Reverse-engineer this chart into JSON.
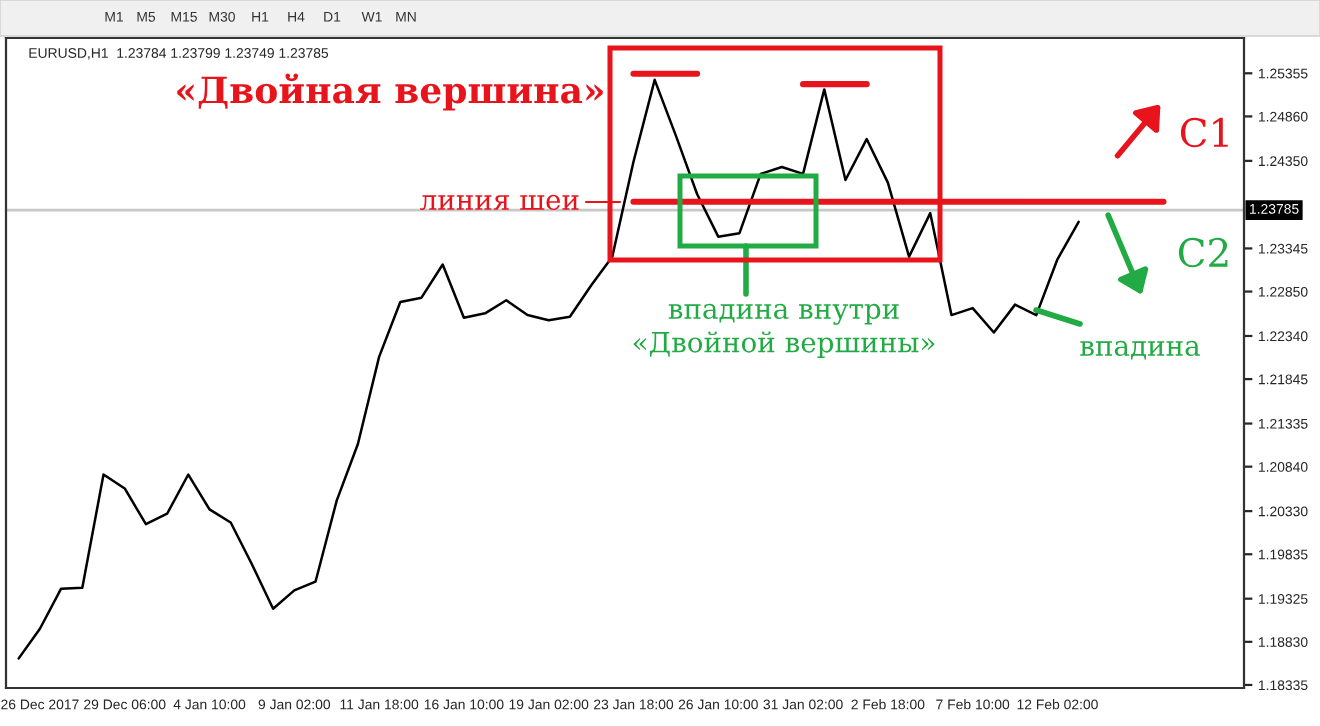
{
  "chart_data": {
    "type": "line",
    "title": "EURUSD,H1  1.23784 1.23799 1.23749 1.23785",
    "annotations": [
      "«Двойная вершина»",
      "линия шеи",
      "впадина внутри\n«Двойной вершины»",
      "C1",
      "C2",
      "впадина",
      "M1",
      "M5",
      "M15",
      "M30",
      "H1",
      "H4",
      "D1",
      "W1",
      "MN"
    ],
    "categories": [
      null,
      null,
      "26 Dec 2017",
      null,
      null,
      null,
      "29 Dec 06:00",
      null,
      null,
      null,
      "4 Jan 10:00",
      null,
      null,
      null,
      "9 Jan 02:00",
      null,
      null,
      null,
      "11 Jan 18:00",
      null,
      null,
      null,
      "16 Jan 10:00",
      null,
      null,
      null,
      "19 Jan 02:00",
      null,
      null,
      null,
      "23 Jan 18:00",
      null,
      null,
      null,
      "26 Jan 10:00",
      null,
      null,
      null,
      "31 Jan 02:00",
      null,
      null,
      null,
      "2 Feb 18:00",
      null,
      null,
      null,
      "7 Feb 10:00",
      null,
      null,
      null,
      "12 Feb 02:00",
      null,
      null,
      null,
      null,
      null,
      null,
      null,
      null
    ],
    "ylim": [
      1.183,
      1.2576
    ],
    "yticks": [
      {
        "value": 1.25355,
        "label": "1.25355"
      },
      {
        "value": 1.2486,
        "label": "1.24860"
      },
      {
        "value": 1.2435,
        "label": "1.24350"
      },
      {
        "value": 1.23345,
        "label": "1.23345"
      },
      {
        "value": 1.2285,
        "label": "1.22850"
      },
      {
        "value": 1.2234,
        "label": "1.22340"
      },
      {
        "value": 1.21845,
        "label": "1.21845"
      },
      {
        "value": 1.21335,
        "label": "1.21335"
      },
      {
        "value": 1.2084,
        "label": "1.20840"
      },
      {
        "value": 1.2033,
        "label": "1.20330"
      },
      {
        "value": 1.19835,
        "label": "1.19835"
      },
      {
        "value": 1.19325,
        "label": "1.19325"
      },
      {
        "value": 1.1883,
        "label": "1.18830"
      },
      {
        "value": 1.18335,
        "label": "1.18335"
      }
    ],
    "ref_lines": [
      {
        "axis": "y",
        "value": 1.23785,
        "label": "1.23785",
        "color": "#c8c8c8"
      }
    ],
    "grid": false,
    "legend": false,
    "marker": "none",
    "line_style": "solid",
    "series": [
      {
        "color": "#000000",
        "values": [
          null,
          1.1864,
          1.1898,
          1.1944,
          1.1945,
          1.2075,
          1.2059,
          1.2018,
          1.203,
          1.2075,
          1.2035,
          1.202,
          1.1972,
          1.1921,
          1.1942,
          1.1952,
          1.2045,
          1.211,
          1.221,
          1.2273,
          1.2278,
          1.2316,
          1.2255,
          1.226,
          1.2275,
          1.2258,
          1.2252,
          1.2256,
          1.2292,
          1.2325,
          1.2434,
          1.2528,
          1.2464,
          1.2397,
          1.2348,
          1.2352,
          1.242,
          1.2428,
          1.242,
          1.2517,
          1.2413,
          1.246,
          1.241,
          1.2325,
          1.2375,
          1.2258,
          1.2266,
          1.2238,
          1.227,
          1.2258,
          1.2322,
          1.2365,
          null,
          null,
          null,
          null,
          null,
          null,
          null
        ]
      },
      {
        "color": "#e8141c",
        "values": [
          null,
          null,
          null,
          null,
          null,
          null,
          null,
          null,
          null,
          null,
          null,
          null,
          null,
          null,
          null,
          null,
          null,
          null,
          null,
          null,
          null,
          null,
          null,
          null,
          null,
          null,
          null,
          null,
          null,
          null,
          1.2388,
          1.2388,
          1.2388,
          1.2388,
          1.2388,
          1.2388,
          1.2388,
          1.2388,
          1.2388,
          1.2388,
          1.2388,
          1.2388,
          1.2388,
          1.2388,
          1.2388,
          1.2388,
          1.2388,
          1.2388,
          1.2388,
          1.2388,
          1.2388,
          1.2388,
          1.2388,
          1.2388,
          1.2388,
          1.2388,
          null,
          null,
          null
        ]
      },
      {
        "color": "#e8141c",
        "values": [
          null,
          null,
          null,
          null,
          null,
          null,
          null,
          null,
          null,
          null,
          null,
          null,
          null,
          null,
          null,
          null,
          null,
          null,
          null,
          null,
          null,
          null,
          null,
          null,
          null,
          null,
          null,
          null,
          null,
          null,
          1.2535,
          1.2535,
          1.2535,
          1.2535,
          null,
          null,
          null,
          null,
          null,
          null,
          null,
          null,
          null,
          null,
          null,
          null,
          null,
          null,
          null,
          null,
          null,
          null,
          null,
          null,
          null,
          null,
          null,
          null,
          null
        ]
      },
      {
        "color": "#e8141c",
        "values": [
          null,
          null,
          null,
          null,
          null,
          null,
          null,
          null,
          null,
          null,
          null,
          null,
          null,
          null,
          null,
          null,
          null,
          null,
          null,
          null,
          null,
          null,
          null,
          null,
          null,
          null,
          null,
          null,
          null,
          null,
          null,
          null,
          null,
          null,
          null,
          null,
          null,
          null,
          1.2523,
          1.2523,
          1.2523,
          1.2523,
          null,
          null,
          null,
          null,
          null,
          null,
          null,
          null,
          null,
          null,
          null,
          null,
          null,
          null,
          null,
          null,
          null
        ]
      }
    ]
  }
}
